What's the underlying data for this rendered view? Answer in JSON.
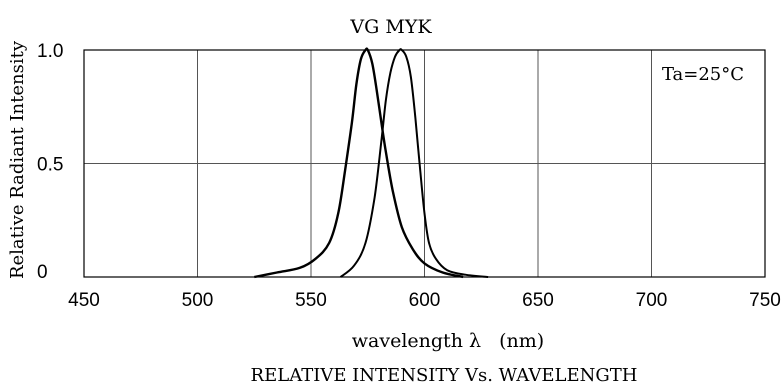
{
  "chart_data": {
    "type": "line",
    "title": "RELATIVE INTENSITY Vs. WAVELENGTH",
    "xlabel": "wavelength λ   (nm)",
    "ylabel": "Relative Radiant Intensity",
    "annotation": "Ta=25°C",
    "xlim": [
      450,
      750
    ],
    "ylim": [
      0,
      1.0
    ],
    "x_ticks": [
      "450",
      "500",
      "550",
      "600",
      "650",
      "700",
      "750"
    ],
    "y_ticks": [
      "0",
      "0.5",
      "1.0"
    ],
    "y_tick_values": [
      0,
      0.5,
      1.0
    ],
    "grid": true,
    "series": [
      {
        "name": "VG",
        "x": [
          525,
          535,
          545,
          552,
          558,
          562,
          565,
          568,
          570,
          572,
          574,
          575,
          577,
          579,
          581,
          583,
          586,
          590,
          595,
          600,
          608,
          617
        ],
        "y": [
          0.0,
          0.02,
          0.04,
          0.08,
          0.15,
          0.28,
          0.47,
          0.68,
          0.85,
          0.96,
          1.0,
          1.0,
          0.94,
          0.82,
          0.68,
          0.55,
          0.38,
          0.22,
          0.12,
          0.06,
          0.02,
          0.0
        ]
      },
      {
        "name": "MYK",
        "x": [
          563,
          569,
          574,
          578,
          581,
          583,
          585,
          587,
          589,
          590,
          592,
          594,
          596,
          598,
          600,
          602,
          605,
          610,
          618,
          628
        ],
        "y": [
          0.0,
          0.05,
          0.15,
          0.35,
          0.6,
          0.78,
          0.9,
          0.97,
          1.0,
          1.0,
          0.97,
          0.88,
          0.7,
          0.48,
          0.28,
          0.15,
          0.08,
          0.03,
          0.01,
          0.0
        ]
      }
    ],
    "series_labels_text": "VG MYK",
    "colors": {
      "line": "#000000",
      "grid": "#555555",
      "background": "#ffffff"
    }
  }
}
